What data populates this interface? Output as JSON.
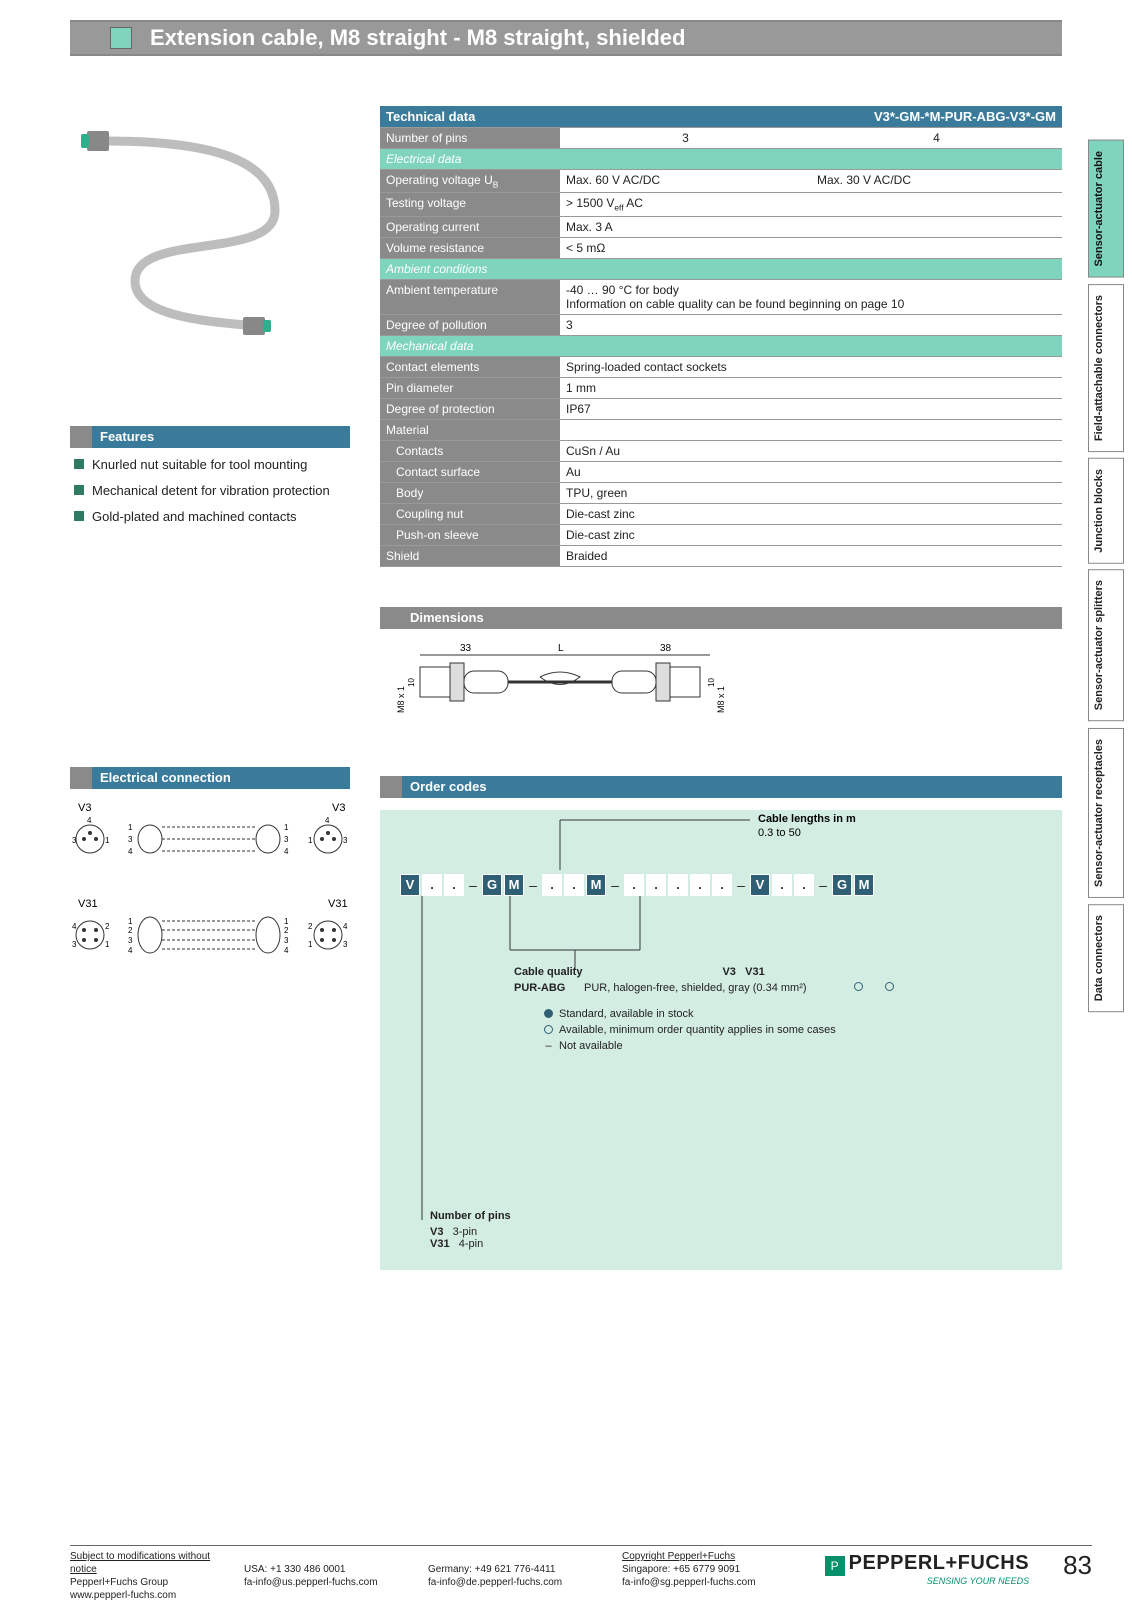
{
  "header": {
    "title": "Extension cable, M8 straight - M8 straight, shielded"
  },
  "sections": {
    "features": "Features",
    "electrical_connection": "Electrical connection",
    "technical_data": "Technical data",
    "dimensions": "Dimensions",
    "order_codes": "Order codes"
  },
  "model_code": "V3*-GM-*M-PUR-ABG-V3*-GM",
  "features": [
    "Knurled nut suitable for tool mounting",
    "Mechanical detent for vibration protection",
    "Gold-plated and machined contacts"
  ],
  "tech": {
    "pins_label": "Number of pins",
    "pins_a": "3",
    "pins_b": "4",
    "elec_head": "Electrical data",
    "op_v_label": "Operating voltage U",
    "op_v_a": "Max. 60 V AC/DC",
    "op_v_b": "Max. 30 V AC/DC",
    "test_v_label": "Testing voltage",
    "test_v": "> 1500 V",
    "test_v_suffix": " AC",
    "op_i_label": "Operating current",
    "op_i": "Max. 3 A",
    "vol_r_label": "Volume resistance",
    "vol_r": "< 5 mΩ",
    "amb_head": "Ambient conditions",
    "amb_t_label": "Ambient temperature",
    "amb_t_a": "-40 … 90 °C for body",
    "amb_t_b": "Information on cable quality can be found beginning on page 10",
    "deg_pol_label": "Degree of pollution",
    "deg_pol": "3",
    "mech_head": "Mechanical data",
    "contact_el_label": "Contact elements",
    "contact_el": "Spring-loaded contact sockets",
    "pin_d_label": "Pin diameter",
    "pin_d": "1 mm",
    "deg_prot_label": "Degree of protection",
    "deg_prot": "IP67",
    "mat_head": "Material",
    "contacts_label": "Contacts",
    "contacts": "CuSn / Au",
    "surf_label": "Contact surface",
    "surf": "Au",
    "body_label": "Body",
    "body": "TPU, green",
    "nut_label": "Coupling nut",
    "nut": "Die-cast zinc",
    "sleeve_label": "Push-on sleeve",
    "sleeve": "Die-cast zinc",
    "shield_label": "Shield",
    "shield": "Braided"
  },
  "dimensions": {
    "d1": "33",
    "d2": "L",
    "d3": "38",
    "m8": "M8 x 1",
    "h": "10"
  },
  "electrical": {
    "v3_label": "V3",
    "v31_label": "V31",
    "v3_pins": [
      "1",
      "3",
      "4"
    ],
    "v3_left": [
      "3",
      "4",
      "1"
    ],
    "v31_pins": [
      "1",
      "2",
      "3",
      "4"
    ],
    "v31_left": [
      "4",
      "3",
      "2",
      "1"
    ]
  },
  "order": {
    "cable_len_title": "Cable lengths in m",
    "cable_len_range": "0.3 to 50",
    "code_groups": [
      [
        "V",
        ".",
        "."
      ],
      [
        "G",
        "M"
      ],
      [
        ".",
        ".",
        "M"
      ],
      [
        ".",
        ".",
        ".",
        ".",
        "."
      ],
      [
        "V",
        ".",
        "."
      ],
      [
        "G",
        "M"
      ]
    ],
    "quality_title": "Cable quality",
    "pur_code": "PUR-ABG",
    "pur_desc": "PUR, halogen-free, shielded, gray (0.34 mm²)",
    "avail_cols": [
      "V3",
      "V31"
    ],
    "legend": [
      {
        "sym": "dot",
        "text": "Standard, available in stock"
      },
      {
        "sym": "ring",
        "text": "Available, minimum order quantity applies in some cases"
      },
      {
        "sym": "dash",
        "text": "Not available"
      }
    ],
    "pins_title": "Number of pins",
    "pins_rows": [
      [
        "V3",
        "3-pin"
      ],
      [
        "V31",
        "4-pin"
      ]
    ]
  },
  "side_tabs": [
    {
      "label": "Sensor-actuator cable",
      "active": true
    },
    {
      "label": "Field-attachable connectors",
      "active": false
    },
    {
      "label": "Junction blocks",
      "active": false
    },
    {
      "label": "Sensor-actuator splitters",
      "active": false
    },
    {
      "label": "Sensor-actuator receptacles",
      "active": false
    },
    {
      "label": "Data connectors",
      "active": false
    }
  ],
  "footer": {
    "notice": "Subject to modifications without notice",
    "copyright": "Copyright Pepperl+Fuchs",
    "c1a": "Pepperl+Fuchs Group",
    "c1b": "www.pepperl-fuchs.com",
    "c2a": "USA: +1 330 486 0001",
    "c2b": "fa-info@us.pepperl-fuchs.com",
    "c3a": "Germany: +49 621 776-4411",
    "c3b": "fa-info@de.pepperl-fuchs.com",
    "c4a": "Singapore: +65 6779 9091",
    "c4b": "fa-info@sg.pepperl-fuchs.com",
    "brand": "PEPPERL+FUCHS",
    "tagline": "SENSING YOUR NEEDS",
    "page": "83"
  }
}
